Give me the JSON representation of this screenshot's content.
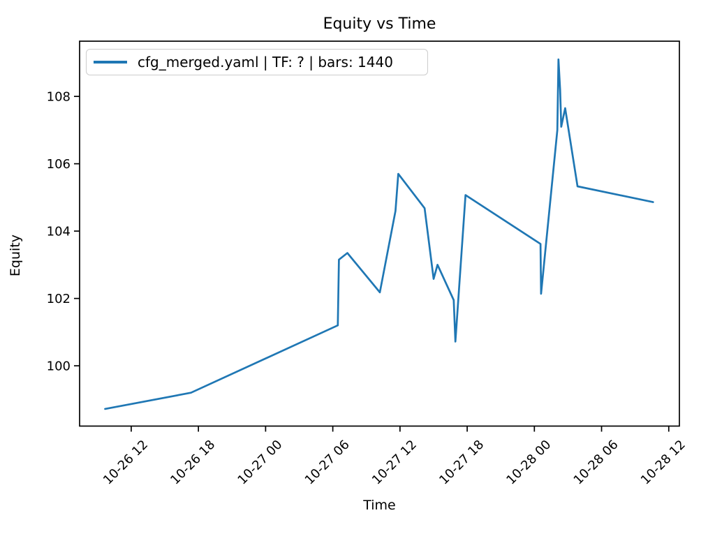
{
  "chart_data": {
    "type": "line",
    "title": "Equity vs Time",
    "xlabel": "Time",
    "ylabel": "Equity",
    "legend_label": "cfg_merged.yaml | TF: ? | bars: 1440",
    "legend_position": "upper left",
    "grid": false,
    "line_color": "#1f77b4",
    "axis_color": "#000000",
    "x_tick_labels": [
      "10-26 12",
      "10-26 18",
      "10-27 00",
      "10-27 06",
      "10-27 12",
      "10-27 18",
      "10-28 00",
      "10-28 06",
      "10-28 12"
    ],
    "y_ticks": [
      100,
      102,
      104,
      106,
      108
    ],
    "x_range_hours_since_10_26": [
      7.39,
      60.95
    ],
    "y_range": [
      98.21,
      109.64
    ],
    "series": [
      {
        "name": "cfg_merged.yaml | TF: ? | bars: 1440",
        "color": "#1f77b4",
        "points": [
          {
            "time": "10-26 09:40",
            "equity": 98.72
          },
          {
            "time": "10-26 17:20",
            "equity": 99.2
          },
          {
            "time": "10-27 06:27",
            "equity": 101.2
          },
          {
            "time": "10-27 06:33",
            "equity": 103.15
          },
          {
            "time": "10-27 07:18",
            "equity": 103.35
          },
          {
            "time": "10-27 10:12",
            "equity": 102.18
          },
          {
            "time": "10-27 11:36",
            "equity": 104.6
          },
          {
            "time": "10-27 11:51",
            "equity": 105.7
          },
          {
            "time": "10-27 14:12",
            "equity": 104.68
          },
          {
            "time": "10-27 15:00",
            "equity": 102.58
          },
          {
            "time": "10-27 15:21",
            "equity": 103.0
          },
          {
            "time": "10-27 16:48",
            "equity": 101.95
          },
          {
            "time": "10-27 16:57",
            "equity": 100.72
          },
          {
            "time": "10-27 17:51",
            "equity": 105.07
          },
          {
            "time": "10-28 00:33",
            "equity": 103.62
          },
          {
            "time": "10-28 00:36",
            "equity": 102.14
          },
          {
            "time": "10-28 02:03",
            "equity": 107.0
          },
          {
            "time": "10-28 02:09",
            "equity": 109.1
          },
          {
            "time": "10-28 02:18",
            "equity": 108.2
          },
          {
            "time": "10-28 02:24",
            "equity": 107.1
          },
          {
            "time": "10-28 02:45",
            "equity": 107.65
          },
          {
            "time": "10-28 03:51",
            "equity": 105.33
          },
          {
            "time": "10-28 10:36",
            "equity": 104.86
          }
        ]
      }
    ]
  }
}
